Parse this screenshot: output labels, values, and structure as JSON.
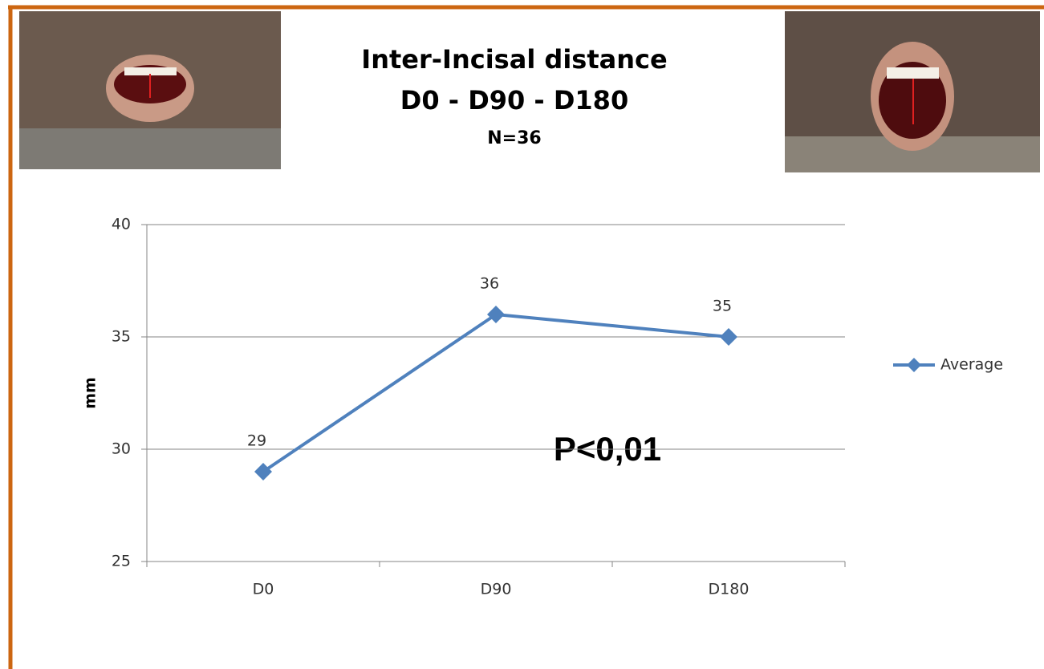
{
  "chart_data": {
    "type": "line",
    "title": "Inter-Incisal distance",
    "subtitle": "D0 - D90 - D180",
    "note": "N=36",
    "ylabel": "mm",
    "annotation": "P<0,01",
    "categories": [
      "D0",
      "D90",
      "D180"
    ],
    "series": [
      {
        "name": "Average",
        "color": "#4f81bd",
        "values": [
          29,
          36,
          35
        ]
      }
    ],
    "ylim": [
      25,
      40
    ],
    "yticks": [
      25,
      30,
      35,
      40
    ],
    "grid": true,
    "legend": "right"
  }
}
